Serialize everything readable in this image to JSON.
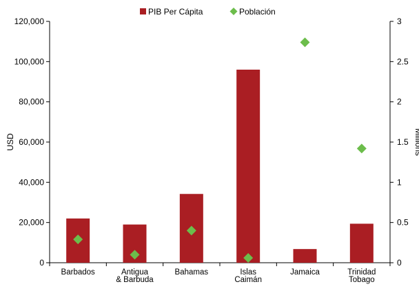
{
  "chart_data": {
    "type": "bar",
    "title": "",
    "categories": [
      [
        "Barbados"
      ],
      [
        "Antigua",
        "& Barbuda"
      ],
      [
        "Bahamas"
      ],
      [
        "Islas",
        "Caimán"
      ],
      [
        "Jamaica"
      ],
      [
        "Trinidad",
        "Tobago"
      ]
    ],
    "series": [
      {
        "name": "PIB Per Cápita",
        "kind": "bar",
        "axis": "left",
        "color": "#aa1e23",
        "values": [
          22000,
          19000,
          34200,
          96000,
          6800,
          19400
        ]
      },
      {
        "name": "Población",
        "kind": "diamond-marker",
        "axis": "right",
        "color": "#6cbd4b",
        "values": [
          0.29,
          0.1,
          0.4,
          0.06,
          2.74,
          1.42
        ]
      }
    ],
    "ylabel": "USD",
    "y2label": "Millions",
    "ylim": [
      0,
      120000
    ],
    "y2lim": [
      0,
      3
    ],
    "yticks": [
      "0",
      "20,000",
      "40,000",
      "60,000",
      "80,000",
      "100,000",
      "120,000"
    ],
    "y2ticks": [
      "0",
      "0.5",
      "1",
      "1.5",
      "2",
      "2.5",
      "3"
    ],
    "legend_position": "top-center",
    "grid": false
  }
}
